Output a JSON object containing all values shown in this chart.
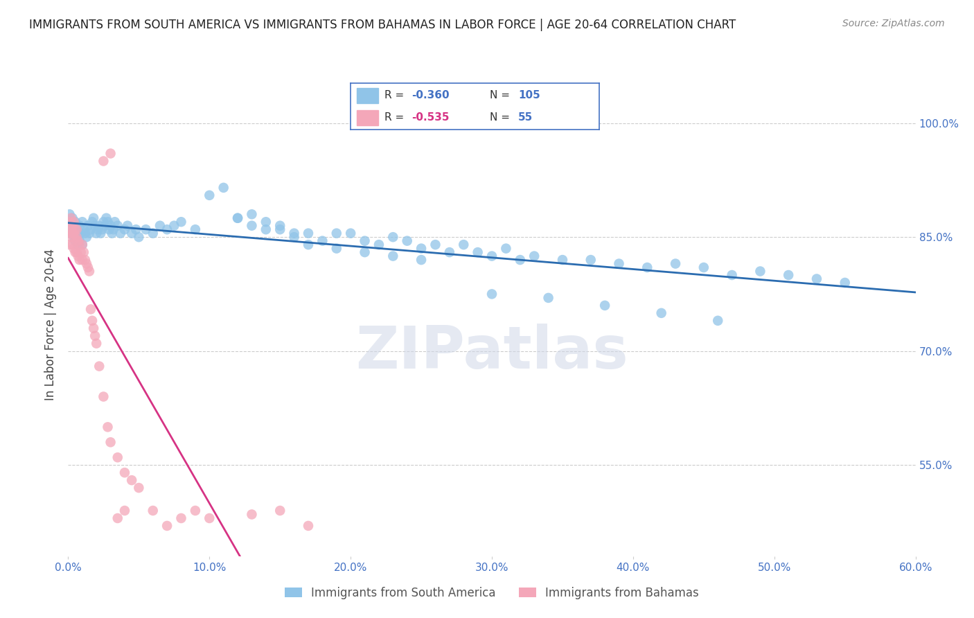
{
  "title": "IMMIGRANTS FROM SOUTH AMERICA VS IMMIGRANTS FROM BAHAMAS IN LABOR FORCE | AGE 20-64 CORRELATION CHART",
  "source": "Source: ZipAtlas.com",
  "ylabel": "In Labor Force | Age 20-64",
  "xlim": [
    0.0,
    0.6
  ],
  "ylim": [
    0.43,
    1.04
  ],
  "xticks": [
    0.0,
    0.1,
    0.2,
    0.3,
    0.4,
    0.5,
    0.6
  ],
  "xticklabels": [
    "0.0%",
    "10.0%",
    "20.0%",
    "30.0%",
    "40.0%",
    "50.0%",
    "60.0%"
  ],
  "yticks": [
    0.55,
    0.7,
    0.85,
    1.0
  ],
  "yticklabels": [
    "55.0%",
    "70.0%",
    "85.0%",
    "100.0%"
  ],
  "grid_color": "#cccccc",
  "background_color": "#ffffff",
  "blue_color": "#90c4e8",
  "pink_color": "#f4a7b9",
  "blue_line_color": "#2b6cb0",
  "pink_line_color": "#d63384",
  "R_blue": -0.36,
  "N_blue": 105,
  "R_pink": -0.535,
  "N_pink": 55,
  "watermark_text": "ZIPatlas",
  "legend_label_blue": "Immigrants from South America",
  "legend_label_pink": "Immigrants from Bahamas",
  "blue_scatter_x": [
    0.001,
    0.002,
    0.002,
    0.003,
    0.003,
    0.004,
    0.004,
    0.005,
    0.005,
    0.006,
    0.006,
    0.007,
    0.007,
    0.008,
    0.008,
    0.009,
    0.01,
    0.01,
    0.011,
    0.012,
    0.013,
    0.014,
    0.015,
    0.016,
    0.017,
    0.018,
    0.019,
    0.02,
    0.021,
    0.022,
    0.023,
    0.024,
    0.025,
    0.026,
    0.027,
    0.028,
    0.029,
    0.03,
    0.031,
    0.032,
    0.033,
    0.035,
    0.037,
    0.04,
    0.042,
    0.045,
    0.048,
    0.05,
    0.055,
    0.06,
    0.065,
    0.07,
    0.075,
    0.08,
    0.09,
    0.1,
    0.11,
    0.12,
    0.13,
    0.14,
    0.15,
    0.16,
    0.17,
    0.18,
    0.19,
    0.2,
    0.21,
    0.22,
    0.23,
    0.24,
    0.25,
    0.26,
    0.27,
    0.28,
    0.29,
    0.3,
    0.31,
    0.32,
    0.33,
    0.35,
    0.37,
    0.39,
    0.41,
    0.43,
    0.45,
    0.47,
    0.49,
    0.51,
    0.53,
    0.55,
    0.17,
    0.19,
    0.21,
    0.23,
    0.25,
    0.15,
    0.16,
    0.14,
    0.13,
    0.12,
    0.3,
    0.34,
    0.38,
    0.42,
    0.46
  ],
  "blue_scatter_y": [
    0.88,
    0.87,
    0.855,
    0.875,
    0.86,
    0.865,
    0.85,
    0.87,
    0.845,
    0.86,
    0.85,
    0.855,
    0.84,
    0.865,
    0.845,
    0.855,
    0.87,
    0.84,
    0.86,
    0.855,
    0.85,
    0.865,
    0.855,
    0.86,
    0.87,
    0.875,
    0.865,
    0.855,
    0.86,
    0.865,
    0.855,
    0.86,
    0.87,
    0.865,
    0.875,
    0.87,
    0.86,
    0.865,
    0.855,
    0.86,
    0.87,
    0.865,
    0.855,
    0.86,
    0.865,
    0.855,
    0.86,
    0.85,
    0.86,
    0.855,
    0.865,
    0.86,
    0.865,
    0.87,
    0.86,
    0.905,
    0.915,
    0.875,
    0.88,
    0.86,
    0.86,
    0.85,
    0.855,
    0.845,
    0.855,
    0.855,
    0.845,
    0.84,
    0.85,
    0.845,
    0.835,
    0.84,
    0.83,
    0.84,
    0.83,
    0.825,
    0.835,
    0.82,
    0.825,
    0.82,
    0.82,
    0.815,
    0.81,
    0.815,
    0.81,
    0.8,
    0.805,
    0.8,
    0.795,
    0.79,
    0.84,
    0.835,
    0.83,
    0.825,
    0.82,
    0.865,
    0.855,
    0.87,
    0.865,
    0.875,
    0.775,
    0.77,
    0.76,
    0.75,
    0.74
  ],
  "pink_scatter_x": [
    0.001,
    0.001,
    0.001,
    0.002,
    0.002,
    0.002,
    0.003,
    0.003,
    0.003,
    0.004,
    0.004,
    0.004,
    0.005,
    0.005,
    0.005,
    0.006,
    0.006,
    0.006,
    0.007,
    0.007,
    0.008,
    0.008,
    0.009,
    0.01,
    0.01,
    0.011,
    0.012,
    0.013,
    0.014,
    0.015,
    0.016,
    0.017,
    0.018,
    0.019,
    0.02,
    0.022,
    0.025,
    0.028,
    0.03,
    0.035,
    0.04,
    0.045,
    0.05,
    0.06,
    0.07,
    0.08,
    0.09,
    0.1,
    0.13,
    0.15,
    0.17,
    0.025,
    0.03,
    0.035,
    0.04
  ],
  "pink_scatter_y": [
    0.87,
    0.855,
    0.84,
    0.875,
    0.86,
    0.85,
    0.865,
    0.855,
    0.84,
    0.87,
    0.855,
    0.835,
    0.86,
    0.848,
    0.83,
    0.86,
    0.85,
    0.83,
    0.845,
    0.825,
    0.84,
    0.82,
    0.83,
    0.84,
    0.82,
    0.83,
    0.82,
    0.815,
    0.81,
    0.805,
    0.755,
    0.74,
    0.73,
    0.72,
    0.71,
    0.68,
    0.64,
    0.6,
    0.58,
    0.56,
    0.54,
    0.53,
    0.52,
    0.49,
    0.47,
    0.48,
    0.49,
    0.48,
    0.485,
    0.49,
    0.47,
    0.95,
    0.96,
    0.48,
    0.49
  ]
}
